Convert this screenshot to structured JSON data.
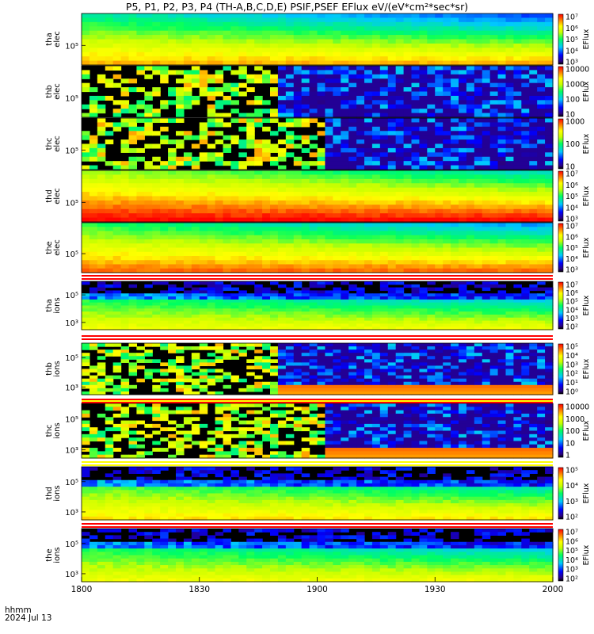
{
  "title": "P5, P1, P2, P3, P4 (TH-A,B,C,D,E) PSIF,PSEF EFlux eV/(eV*cm²*sec*sr)",
  "footer": {
    "hhmm": "hhmm",
    "date": "2024 Jul 13"
  },
  "chart_data": {
    "type": "heatmap",
    "x_ticks": [
      "1800",
      "1830",
      "1900",
      "1930",
      "2000"
    ],
    "x_range": [
      "18:00",
      "20:00"
    ],
    "colorbar_label": "EFlux",
    "panels": [
      {
        "id": "tha_elec",
        "label": [
          "tha",
          "elec"
        ],
        "species": "elec",
        "pattern": "smooth",
        "intensity": 0.55,
        "y_ticks": [
          "10⁵"
        ],
        "cbar_ticks": [
          "10⁷",
          "10⁶",
          "10⁵",
          "10⁴",
          "10³"
        ]
      },
      {
        "id": "thb_elec",
        "label": [
          "thb",
          "elec"
        ],
        "species": "elec",
        "pattern": "sparse",
        "change_x": "18:49",
        "y_ticks": [
          "10⁵"
        ],
        "cbar_ticks": [
          "10000",
          "1000",
          "100",
          "10"
        ]
      },
      {
        "id": "thc_elec",
        "label": [
          "thc",
          "elec"
        ],
        "species": "elec",
        "pattern": "sparse",
        "change_x": "19:01",
        "y_ticks": [
          "10⁵"
        ],
        "cbar_ticks": [
          "1000",
          "100",
          "10"
        ]
      },
      {
        "id": "thd_elec",
        "label": [
          "thd",
          "elec"
        ],
        "species": "elec",
        "pattern": "smooth",
        "intensity": 0.72,
        "y_ticks": [
          "10⁵"
        ],
        "cbar_ticks": [
          "10⁷",
          "10⁶",
          "10⁵",
          "10⁴",
          "10³"
        ]
      },
      {
        "id": "the_elec",
        "label": [
          "the",
          "elec"
        ],
        "species": "elec",
        "pattern": "smooth",
        "intensity": 0.62,
        "y_ticks": [
          "10⁵"
        ],
        "cbar_ticks": [
          "10⁷",
          "10⁶",
          "10⁵",
          "10⁴",
          "10³"
        ]
      },
      {
        "id": "tha_ions",
        "label": [
          "tha",
          "ions"
        ],
        "species": "ions",
        "pattern": "ions",
        "intensity": 0.5,
        "y_ticks": [
          "10⁵",
          "10³"
        ],
        "cbar_ticks": [
          "10⁷",
          "10⁶",
          "10⁵",
          "10⁴",
          "10³",
          "10²"
        ]
      },
      {
        "id": "thb_ions",
        "label": [
          "thb",
          "ions"
        ],
        "species": "ions",
        "pattern": "sparse_ions",
        "change_x": "18:49",
        "y_ticks": [
          "10⁵",
          "10³"
        ],
        "cbar_ticks": [
          "10⁵",
          "10⁴",
          "10³",
          "10²",
          "10¹",
          "10⁰"
        ]
      },
      {
        "id": "thc_ions",
        "label": [
          "thc",
          "ions"
        ],
        "species": "ions",
        "pattern": "sparse_ions",
        "change_x": "19:01",
        "y_ticks": [
          "10⁵",
          "10³"
        ],
        "cbar_ticks": [
          "10000",
          "1000",
          "100",
          "10",
          "1"
        ]
      },
      {
        "id": "thd_ions",
        "label": [
          "thd",
          "ions"
        ],
        "species": "ions",
        "pattern": "ions",
        "intensity": 0.55,
        "y_ticks": [
          "10⁵",
          "10³"
        ],
        "cbar_ticks": [
          "10⁵",
          "10⁴",
          "10³",
          "10²"
        ]
      },
      {
        "id": "the_ions",
        "label": [
          "the",
          "ions"
        ],
        "species": "ions",
        "pattern": "ions",
        "intensity": 0.5,
        "y_ticks": [
          "10⁵",
          "10³"
        ],
        "cbar_ticks": [
          "10⁷",
          "10⁶",
          "10⁵",
          "10⁴",
          "10³",
          "10²"
        ]
      }
    ],
    "mode_bars": [
      {
        "after_panel": "the_elec",
        "colors": [
          "#ff0000",
          "#ffffff",
          "#ff0000"
        ]
      },
      {
        "after_panel": "tha_ions",
        "colors": [
          "#ff0000",
          "#ffffff",
          "#ff0000"
        ]
      },
      {
        "after_panel": "thb_ions",
        "colors": [
          "#ff0000",
          "#ffff00",
          "#ff0000"
        ]
      },
      {
        "after_panel": "thc_ions",
        "colors": [
          "#ffff00",
          "#ffffff",
          "#ffff00"
        ]
      },
      {
        "after_panel": "thd_ions",
        "colors": [
          "#ff0000",
          "#ffffff",
          "#ff0000"
        ]
      }
    ]
  }
}
